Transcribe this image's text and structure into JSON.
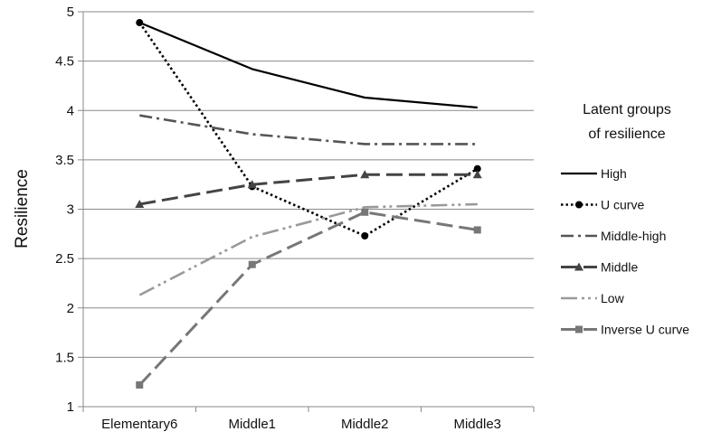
{
  "chart_data": {
    "type": "line",
    "title": "",
    "xlabel": "",
    "ylabel": "Resilience",
    "categories": [
      "Elementary6",
      "Middle1",
      "Middle2",
      "Middle3"
    ],
    "ylim": [
      1,
      5
    ],
    "yticks": [
      "1",
      "1.5",
      "2",
      "2.5",
      "3",
      "3.5",
      "4",
      "4.5",
      "5"
    ],
    "grid": "horizontal",
    "legend_title_lines": [
      "Latent groups",
      "of resilience"
    ],
    "legend_position": "right",
    "series": [
      {
        "name": "High",
        "values": [
          4.89,
          4.42,
          4.13,
          4.03
        ],
        "color": "#000000",
        "dash": "solid",
        "marker": "none"
      },
      {
        "name": "U  curve",
        "values": [
          4.89,
          3.23,
          2.73,
          3.41
        ],
        "color": "#000000",
        "dash": "dotted",
        "marker": "circle"
      },
      {
        "name": "Middle-high",
        "values": [
          3.95,
          3.76,
          3.66,
          3.66
        ],
        "color": "#555555",
        "dash": "dashdot",
        "marker": "none"
      },
      {
        "name": "Middle",
        "values": [
          3.05,
          3.25,
          3.35,
          3.35
        ],
        "color": "#444444",
        "dash": "longdash",
        "marker": "triangle"
      },
      {
        "name": "Low",
        "values": [
          2.13,
          2.72,
          3.02,
          3.05
        ],
        "color": "#999999",
        "dash": "dashdotdot",
        "marker": "none"
      },
      {
        "name": "Inverse  U  curve",
        "values": [
          1.22,
          2.44,
          2.97,
          2.79
        ],
        "color": "#777777",
        "dash": "longdash",
        "marker": "square"
      }
    ]
  }
}
